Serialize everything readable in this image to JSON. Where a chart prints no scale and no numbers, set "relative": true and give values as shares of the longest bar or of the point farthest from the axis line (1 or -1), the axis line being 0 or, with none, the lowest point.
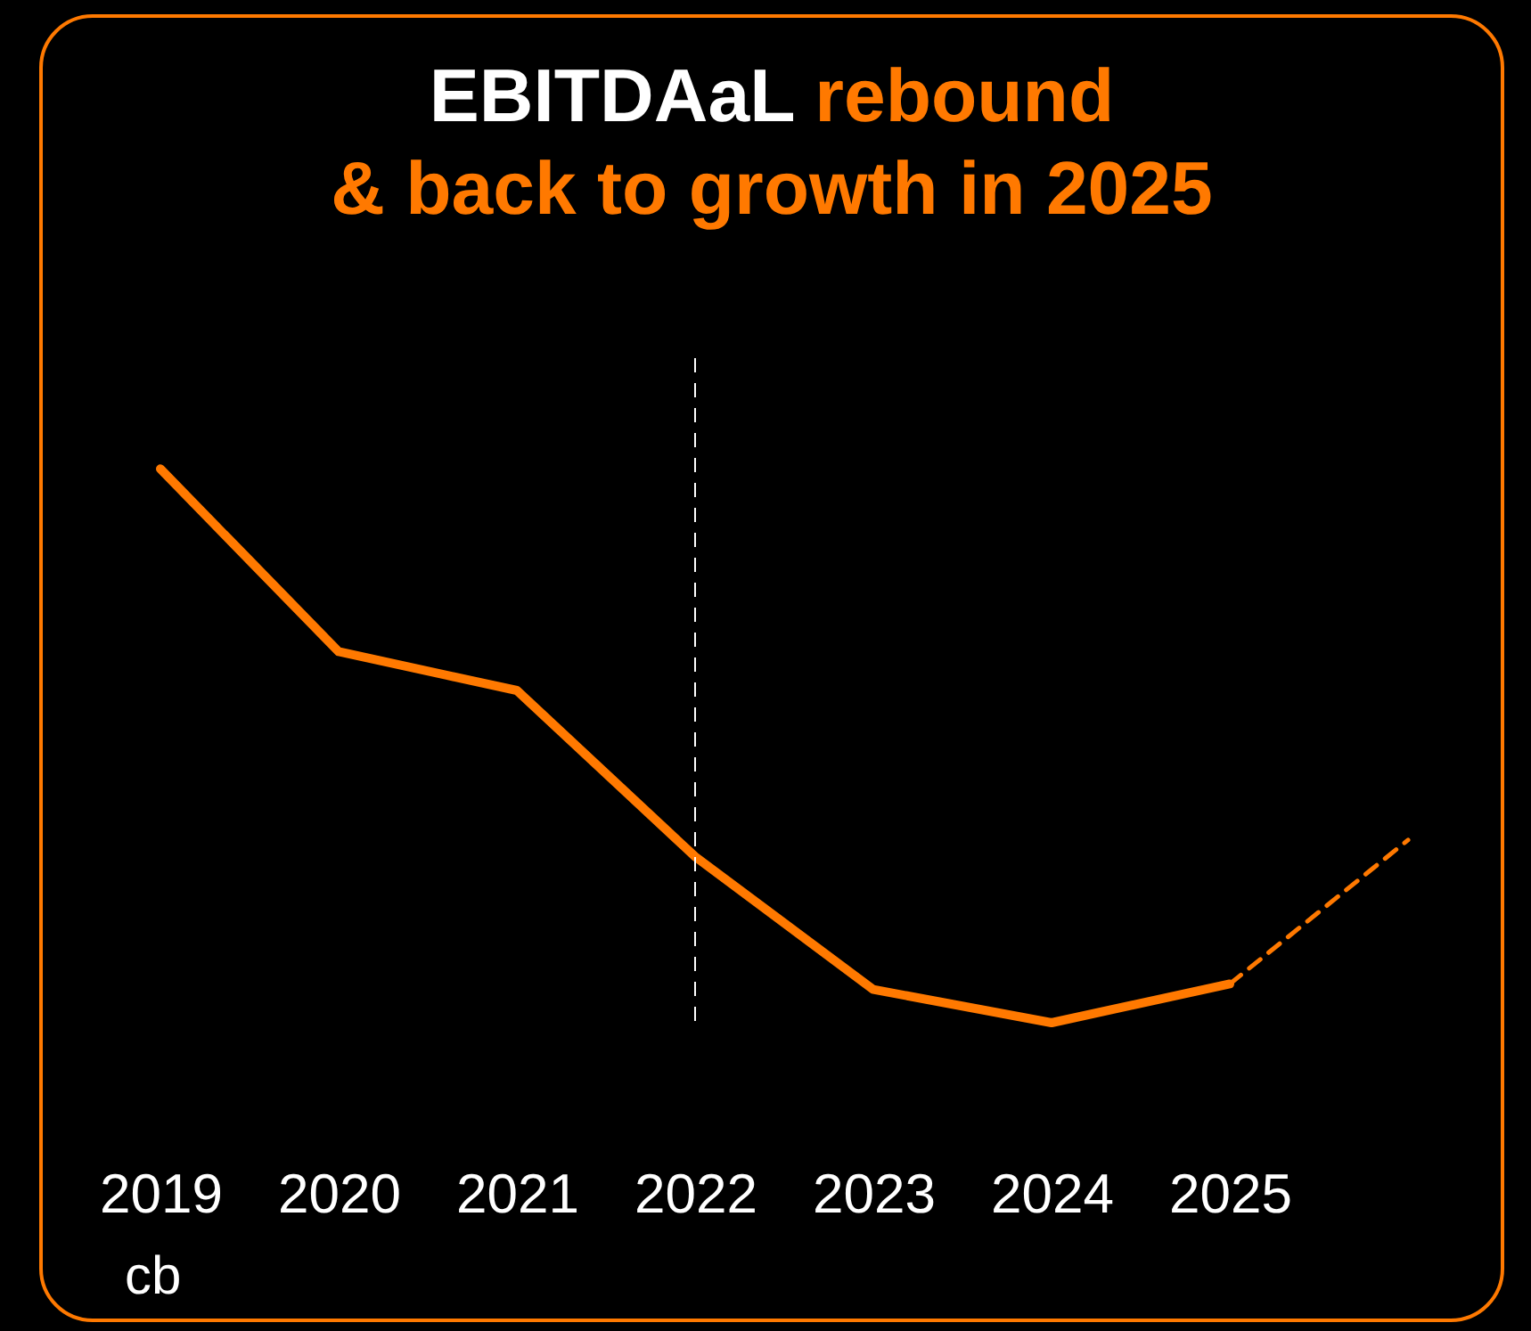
{
  "chart_data": {
    "type": "line",
    "title": "EBITDAaL rebound",
    "subtitle": "& back to growth in 2025",
    "relative": true,
    "marker": "none",
    "categories": [
      "2019",
      "2020",
      "2021",
      "2022",
      "2023",
      "2024",
      "2025",
      null
    ],
    "series": [
      {
        "color": "#ff7900",
        "line_style": "solid",
        "values": [
          1,
          0.67,
          0.6,
          0.3,
          0.06,
          0,
          0.07,
          null
        ]
      },
      {
        "color": "#ff7900",
        "line_style": "dashed",
        "values": [
          null,
          null,
          null,
          null,
          null,
          null,
          0.07,
          0.33
        ]
      }
    ],
    "ref_lines": [
      {
        "axis": "x",
        "value": "2022",
        "color": "#ffffff",
        "line_style": "dashed"
      }
    ],
    "annotations": [
      "cb"
    ]
  }
}
